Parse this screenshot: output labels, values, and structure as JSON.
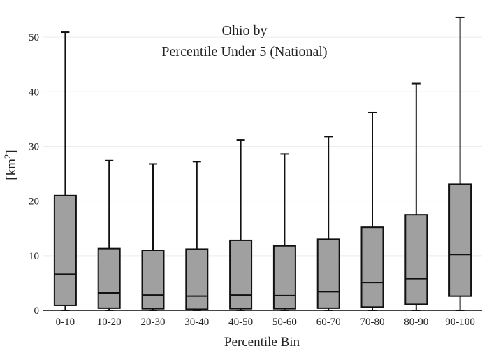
{
  "chart_data": {
    "type": "box",
    "title_lines": [
      "Ohio  by",
      "Percentile Under 5 (National)"
    ],
    "xlabel": "Percentile Bin",
    "ylabel_base": "[km",
    "ylabel_sup": "2",
    "ylabel_close": "]",
    "ylim": [
      0,
      55
    ],
    "yticks": [
      0,
      10,
      20,
      30,
      40,
      50
    ],
    "grid": true,
    "box_color": "#a0a0a0",
    "line_color": "#111111",
    "categories": [
      "0-10",
      "10-20",
      "20-30",
      "30-40",
      "40-50",
      "50-60",
      "60-70",
      "70-80",
      "80-90",
      "90-100"
    ],
    "series": [
      {
        "boxes": [
          {
            "min": 0,
            "q1": 0.9,
            "median": 6.6,
            "q3": 21.0,
            "max": 50.9
          },
          {
            "min": 0,
            "q1": 0.4,
            "median": 3.2,
            "q3": 11.3,
            "max": 27.4
          },
          {
            "min": 0,
            "q1": 0.3,
            "median": 2.8,
            "q3": 11.0,
            "max": 26.8
          },
          {
            "min": 0,
            "q1": 0.2,
            "median": 2.6,
            "q3": 11.2,
            "max": 27.2
          },
          {
            "min": 0,
            "q1": 0.3,
            "median": 2.8,
            "q3": 12.8,
            "max": 31.2
          },
          {
            "min": 0,
            "q1": 0.3,
            "median": 2.7,
            "q3": 11.8,
            "max": 28.6
          },
          {
            "min": 0,
            "q1": 0.4,
            "median": 3.4,
            "q3": 13.0,
            "max": 31.8
          },
          {
            "min": 0,
            "q1": 0.6,
            "median": 5.1,
            "q3": 15.2,
            "max": 36.2
          },
          {
            "min": 0,
            "q1": 1.1,
            "median": 5.8,
            "q3": 17.5,
            "max": 41.5
          },
          {
            "min": 0,
            "q1": 2.6,
            "median": 10.2,
            "q3": 23.1,
            "max": 53.6
          }
        ]
      }
    ]
  }
}
